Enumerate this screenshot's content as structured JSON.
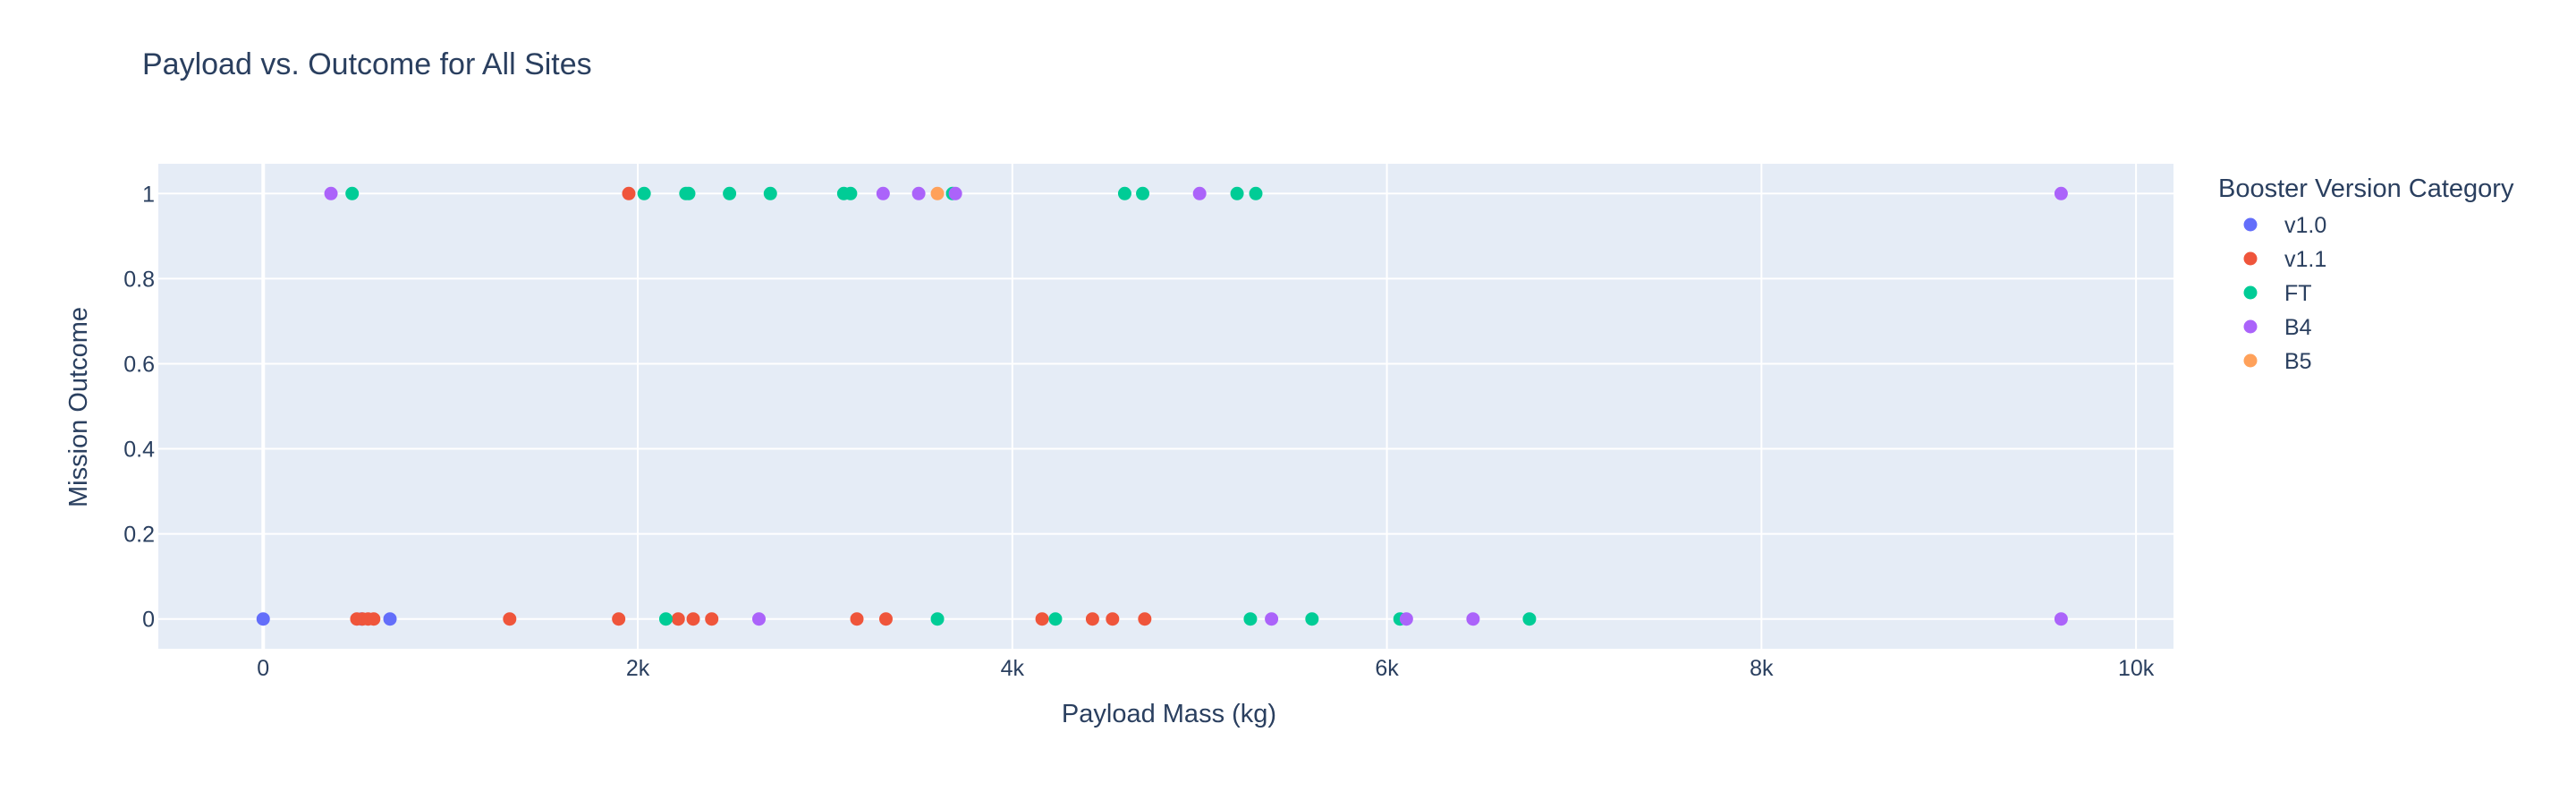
{
  "chart_data": {
    "type": "scatter",
    "title": "Payload vs. Outcome for All Sites",
    "xlabel": "Payload Mass (kg)",
    "ylabel": "Mission Outcome",
    "xlim": [
      -560,
      10200
    ],
    "ylim": [
      -0.07,
      1.07
    ],
    "x_ticks": [
      0,
      2000,
      4000,
      6000,
      8000,
      10000
    ],
    "x_tick_labels": [
      "0",
      "2k",
      "4k",
      "6k",
      "8k",
      "10k"
    ],
    "y_ticks": [
      0,
      0.2,
      0.4,
      0.6,
      0.8,
      1
    ],
    "y_tick_labels": [
      "0",
      "0.2",
      "0.4",
      "0.6",
      "0.8",
      "1"
    ],
    "grid": true,
    "plot_bg": "#e5ecf6",
    "legend": {
      "title": "Booster Version Category",
      "placement": "right"
    },
    "series": [
      {
        "name": "v1.0",
        "color": "#636efa",
        "x": [
          0,
          525,
          677
        ],
        "y": [
          0,
          0,
          0
        ]
      },
      {
        "name": "v1.1",
        "color": "#ef553b",
        "x": [
          500,
          530,
          560,
          590,
          1316,
          1898,
          1952,
          2216,
          2296,
          2395,
          3170,
          3325,
          4159,
          4428,
          4535,
          4707
        ],
        "y": [
          0,
          0,
          0,
          0,
          0,
          0,
          1,
          0,
          0,
          0,
          0,
          0,
          0,
          0,
          0,
          0
        ]
      },
      {
        "name": "FT",
        "color": "#00cc96",
        "x": [
          475,
          2034,
          2150,
          2257,
          2272,
          2490,
          2708,
          3100,
          3136,
          3600,
          3681,
          4230,
          4600,
          4696,
          5200,
          5271,
          5300,
          5600,
          6070,
          6761
        ],
        "y": [
          1,
          1,
          0,
          1,
          1,
          1,
          1,
          1,
          1,
          0,
          1,
          0,
          1,
          1,
          1,
          0,
          1,
          0,
          0,
          0
        ],
        "opacity": 1
      },
      {
        "name": "B4",
        "color": "#ab63fa",
        "x": [
          362,
          2647,
          3310,
          3500,
          3696,
          5000,
          5384,
          6104,
          6460,
          9600,
          9600
        ],
        "y": [
          1,
          0,
          1,
          1,
          1,
          1,
          0,
          0,
          0,
          1,
          0
        ]
      },
      {
        "name": "B5",
        "color": "#ffa15a",
        "x": [
          3600
        ],
        "y": [
          1
        ]
      }
    ]
  }
}
